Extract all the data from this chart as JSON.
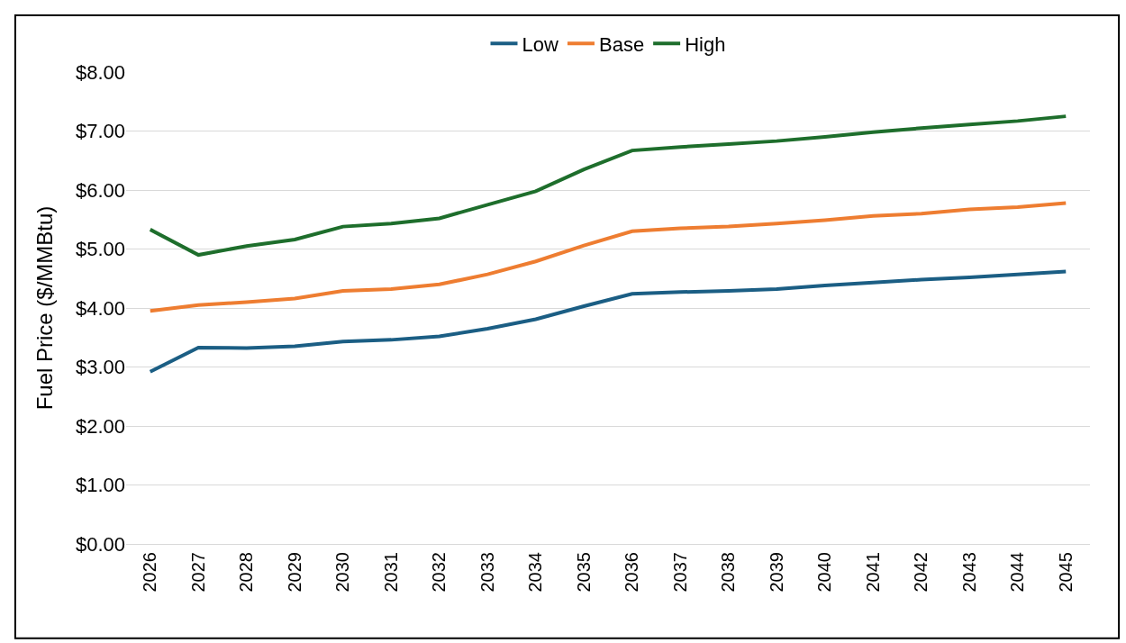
{
  "chart_data": {
    "type": "line",
    "ylabel": "Fuel Price ($/MMBtu)",
    "categories": [
      "2026",
      "2027",
      "2028",
      "2029",
      "2030",
      "2031",
      "2032",
      "2033",
      "2034",
      "2035",
      "2036",
      "2037",
      "2038",
      "2039",
      "2040",
      "2041",
      "2042",
      "2043",
      "2044",
      "2045"
    ],
    "series": [
      {
        "name": "Low",
        "color": "#1b5e84",
        "values": [
          2.92,
          3.33,
          3.32,
          3.35,
          3.43,
          3.46,
          3.52,
          3.65,
          3.81,
          4.03,
          4.24,
          4.27,
          4.29,
          4.32,
          4.38,
          4.43,
          4.48,
          4.52,
          4.57,
          4.62
        ]
      },
      {
        "name": "Base",
        "color": "#ee7d31",
        "values": [
          3.95,
          4.05,
          4.1,
          4.16,
          4.29,
          4.32,
          4.4,
          4.57,
          4.79,
          5.06,
          5.3,
          5.35,
          5.38,
          5.43,
          5.49,
          5.56,
          5.6,
          5.67,
          5.71,
          5.78
        ]
      },
      {
        "name": "High",
        "color": "#1e6e2c",
        "values": [
          5.33,
          4.9,
          5.05,
          5.16,
          5.38,
          5.43,
          5.52,
          5.75,
          5.98,
          6.35,
          6.67,
          6.73,
          6.78,
          6.83,
          6.9,
          6.98,
          7.05,
          7.11,
          7.17,
          7.25
        ]
      }
    ],
    "ylim": [
      0,
      8
    ],
    "yticks": [
      {
        "value": 0,
        "label": "$0.00"
      },
      {
        "value": 1,
        "label": "$1.00"
      },
      {
        "value": 2,
        "label": "$2.00"
      },
      {
        "value": 3,
        "label": "$3.00"
      },
      {
        "value": 4,
        "label": "$4.00"
      },
      {
        "value": 5,
        "label": "$5.00"
      },
      {
        "value": 6,
        "label": "$6.00"
      },
      {
        "value": 7,
        "label": "$7.00"
      },
      {
        "value": 8,
        "label": "$8.00"
      }
    ],
    "grid": "y",
    "legend": "top",
    "marker": "none",
    "line_style": "solid"
  }
}
